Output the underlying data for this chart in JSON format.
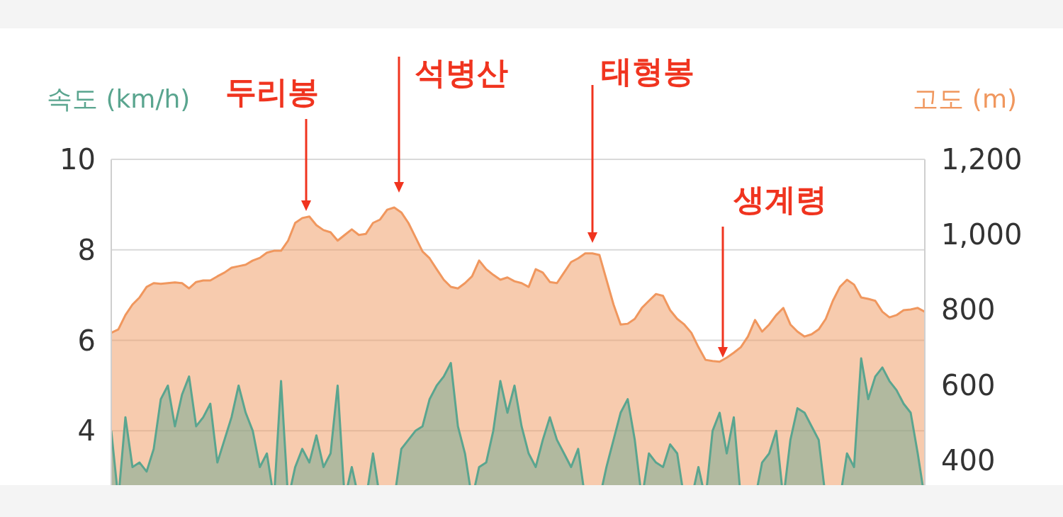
{
  "chart_data": {
    "type": "area",
    "ylabel": "속도 (km/h)",
    "y2label": "고도 (m)",
    "categories": [
      null,
      null,
      null,
      null,
      null,
      null,
      null,
      null,
      null,
      null,
      null,
      null,
      null,
      null,
      null,
      null,
      null,
      null,
      null,
      null,
      null,
      null,
      null,
      null,
      null,
      null,
      null,
      null,
      null,
      null,
      null,
      null,
      null,
      null,
      null,
      null,
      null,
      null,
      null,
      null,
      null,
      null,
      null,
      null,
      null,
      null,
      null,
      null,
      null,
      null,
      null,
      null,
      null,
      null,
      null,
      null,
      null,
      null,
      null,
      null,
      null,
      null,
      null,
      null,
      null,
      null,
      null,
      null,
      null,
      null,
      null,
      null,
      null,
      null,
      null,
      null,
      null,
      null,
      null,
      null,
      null,
      null,
      null,
      null,
      null,
      null,
      null,
      null,
      null,
      null,
      null,
      null,
      null,
      null,
      null,
      null,
      null,
      null,
      null,
      null,
      null,
      null,
      null,
      null,
      null,
      null,
      null,
      null,
      null,
      null,
      null,
      null,
      null,
      null,
      null,
      null
    ],
    "ylim": [
      2.8,
      10
    ],
    "yticks": [
      4,
      6,
      8,
      10
    ],
    "y2lim": [
      334,
      1200
    ],
    "y2ticks": [
      {
        "value": 400,
        "label": "400"
      },
      {
        "value": 600,
        "label": "600"
      },
      {
        "value": 800,
        "label": "800"
      },
      {
        "value": 1000,
        "label": "1,000"
      },
      {
        "value": 1200,
        "label": "1,200"
      }
    ],
    "grid": "y",
    "tick_labels": "y",
    "series": [
      {
        "axis": "y2",
        "color": "#f0975e",
        "values": [
          739,
          748,
          786,
          814,
          833,
          861,
          871,
          869,
          871,
          873,
          871,
          857,
          874,
          878,
          878,
          889,
          899,
          912,
          916,
          920,
          931,
          938,
          952,
          957,
          957,
          984,
          1031,
          1044,
          1048,
          1025,
          1012,
          1006,
          984,
          999,
          1014,
          999,
          1002,
          1031,
          1040,
          1066,
          1072,
          1059,
          1031,
          993,
          955,
          937,
          908,
          880,
          861,
          857,
          871,
          889,
          931,
          908,
          893,
          880,
          886,
          876,
          871,
          861,
          908,
          899,
          874,
          871,
          899,
          927,
          937,
          950,
          950,
          946,
          880,
          814,
          761,
          763,
          776,
          805,
          824,
          842,
          837,
          799,
          776,
          761,
          739,
          701,
          667,
          664,
          662,
          673,
          686,
          701,
          729,
          773,
          742,
          761,
          786,
          805,
          761,
          742,
          729,
          735,
          748,
          776,
          824,
          861,
          880,
          867,
          833,
          829,
          824,
          795,
          780,
          786,
          799,
          801,
          805,
          795
        ]
      },
      {
        "axis": "y",
        "color": "#5aa58f",
        "values": [
          4.0,
          null,
          4.3,
          3.2,
          3.3,
          3.1,
          3.6,
          4.7,
          5.0,
          4.1,
          4.8,
          5.2,
          4.1,
          4.3,
          4.6,
          3.3,
          3.8,
          4.3,
          5.0,
          4.4,
          4.0,
          3.2,
          3.5,
          null,
          5.1,
          null,
          3.2,
          3.6,
          3.3,
          3.9,
          3.2,
          3.5,
          5.0,
          null,
          3.2,
          null,
          null,
          3.5,
          null,
          null,
          null,
          3.6,
          3.8,
          4.0,
          4.1,
          4.7,
          5.0,
          5.2,
          5.5,
          4.1,
          3.5,
          null,
          3.2,
          3.3,
          4.0,
          5.1,
          4.4,
          5.0,
          4.1,
          3.5,
          3.2,
          3.8,
          4.3,
          3.8,
          3.5,
          3.2,
          3.6,
          null,
          null,
          null,
          3.2,
          3.8,
          4.4,
          4.7,
          3.8,
          null,
          3.5,
          3.3,
          3.2,
          3.7,
          3.5,
          null,
          null,
          3.2,
          null,
          4.0,
          4.4,
          3.5,
          4.3,
          null,
          null,
          null,
          3.3,
          3.5,
          4.0,
          null,
          3.8,
          4.5,
          4.4,
          4.1,
          3.8,
          null,
          null,
          null,
          3.5,
          3.2,
          5.6,
          4.7,
          5.2,
          5.4,
          5.1,
          4.9,
          4.6,
          4.4,
          3.5,
          null
        ]
      }
    ],
    "annotations": [
      "두리봉",
      "석병산",
      "태형봉",
      "생계령"
    ]
  }
}
